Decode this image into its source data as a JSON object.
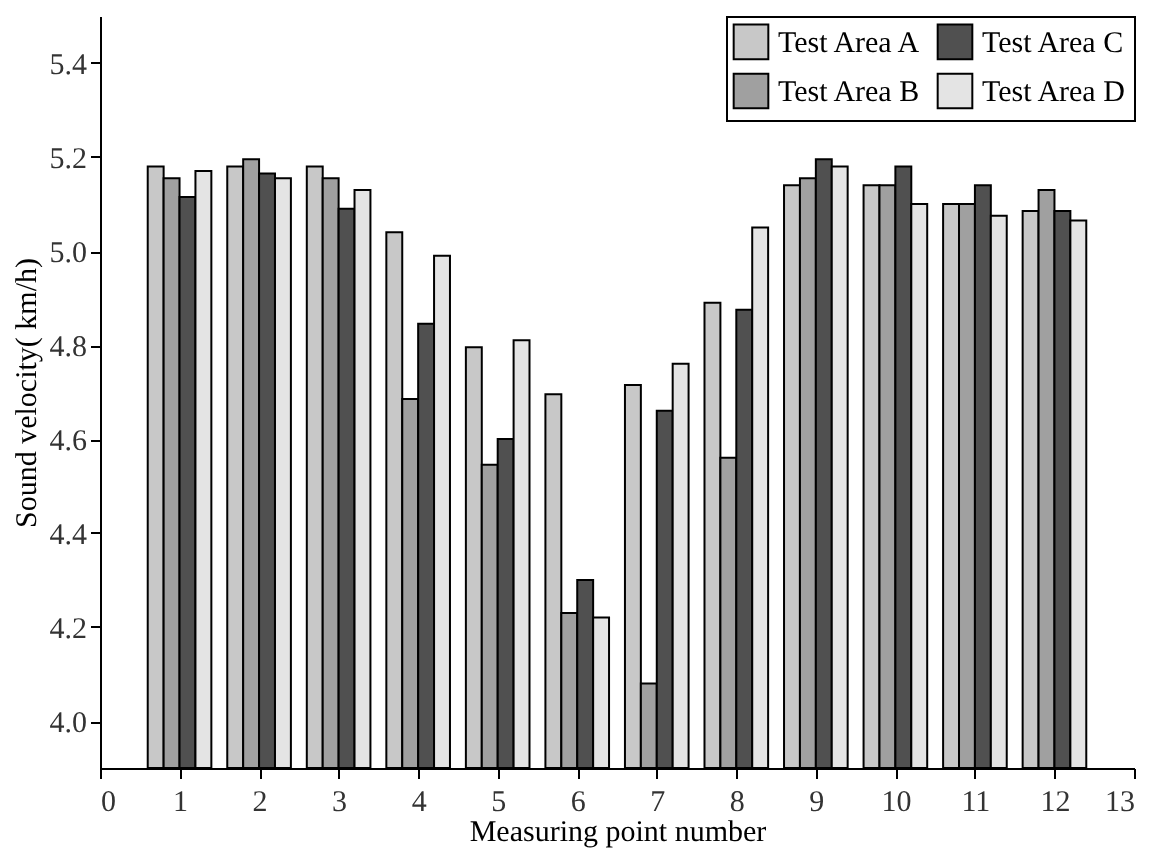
{
  "chart_data": {
    "type": "bar",
    "xlabel": "Measuring point number",
    "ylabel": "Sound velocity( km/h)",
    "x": [
      1,
      2,
      3,
      4,
      5,
      6,
      7,
      8,
      9,
      10,
      11,
      12
    ],
    "series": [
      {
        "name": "Test Area A",
        "color": "#c8c8c8",
        "values": [
          5.18,
          5.18,
          5.18,
          5.04,
          4.795,
          4.695,
          4.715,
          4.89,
          5.14,
          5.14,
          5.1,
          5.085
        ]
      },
      {
        "name": "Test Area B",
        "color": "#a0a0a0",
        "values": [
          5.155,
          5.195,
          5.155,
          4.685,
          4.545,
          4.23,
          4.08,
          4.56,
          5.155,
          5.14,
          5.1,
          5.13
        ]
      },
      {
        "name": "Test Area C",
        "color": "#505050",
        "values": [
          5.115,
          5.165,
          5.09,
          4.845,
          4.6,
          4.3,
          4.66,
          4.875,
          5.195,
          5.18,
          5.14,
          5.085
        ]
      },
      {
        "name": "Test Area D",
        "color": "#e4e4e4",
        "values": [
          5.17,
          5.155,
          5.13,
          4.99,
          4.81,
          4.22,
          4.76,
          5.05,
          5.18,
          5.1,
          5.075,
          5.065
        ]
      }
    ],
    "xlim": [
      0,
      13
    ],
    "xticks": [
      0,
      1,
      2,
      3,
      4,
      5,
      6,
      7,
      8,
      9,
      10,
      11,
      12,
      13
    ],
    "ylim": [
      3.9,
      5.5
    ],
    "yticks": [
      {
        "value": 4.0,
        "label": "4.0"
      },
      4.2,
      4.4,
      4.6,
      4.8,
      {
        "value": 5.0,
        "label": "5.0"
      },
      5.2,
      5.4
    ],
    "grid": false,
    "legend": "top right"
  }
}
